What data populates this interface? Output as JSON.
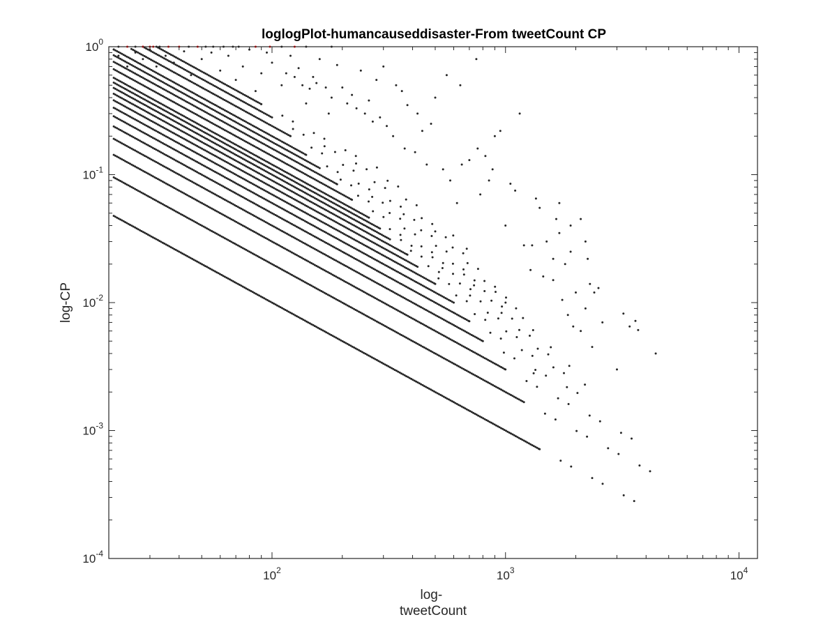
{
  "chart_data": {
    "type": "scatter",
    "title": "loglogPlot-humancauseddisaster-From tweetCount CP",
    "xlabel_lines": [
      "log-",
      "tweetCount"
    ],
    "ylabel": "log-CP",
    "xscale": "log",
    "yscale": "log",
    "xlim": [
      20,
      12000
    ],
    "ylim": [
      0.0001,
      1
    ],
    "grid": false,
    "legend": "none",
    "x_ticks": [
      {
        "value": 100,
        "base": "10",
        "exp": "2"
      },
      {
        "value": 1000,
        "base": "10",
        "exp": "3"
      },
      {
        "value": 10000,
        "base": "10",
        "exp": "4"
      }
    ],
    "y_ticks": [
      {
        "value": 1,
        "base": "10",
        "exp": "0"
      },
      {
        "value": 0.1,
        "base": "10",
        "exp": "-1"
      },
      {
        "value": 0.01,
        "base": "10",
        "exp": "-2"
      },
      {
        "value": 0.001,
        "base": "10",
        "exp": "-3"
      },
      {
        "value": 0.0001,
        "base": "10",
        "exp": "-4"
      }
    ],
    "point_color": "#262626",
    "highlight_color": "#ff0000",
    "series": [
      {
        "k": 1,
        "x_min": 21,
        "x_max": 1400,
        "dense": true
      },
      {
        "k": 1,
        "x_min": 1400,
        "x_max": 4200,
        "dense": false
      },
      {
        "k": 2,
        "x_min": 21,
        "x_max": 1200,
        "dense": true
      },
      {
        "k": 2,
        "x_min": 1200,
        "x_max": 4300,
        "dense": false
      },
      {
        "k": 3,
        "x_min": 21,
        "x_max": 1000,
        "dense": true
      },
      {
        "k": 3,
        "x_min": 1000,
        "x_max": 3500,
        "dense": false
      },
      {
        "k": 4,
        "x_min": 21,
        "x_max": 800,
        "dense": true
      },
      {
        "k": 4,
        "x_min": 800,
        "x_max": 2400,
        "dense": false
      },
      {
        "k": 5,
        "x_min": 21,
        "x_max": 700,
        "dense": true
      },
      {
        "k": 5,
        "x_min": 700,
        "x_max": 2400,
        "dense": false
      },
      {
        "k": 6,
        "x_min": 21,
        "x_max": 600,
        "dense": true
      },
      {
        "k": 6,
        "x_min": 600,
        "x_max": 1900,
        "dense": false
      },
      {
        "k": 7,
        "x_min": 21,
        "x_max": 500,
        "dense": true
      },
      {
        "k": 7,
        "x_min": 500,
        "x_max": 1600,
        "dense": false
      },
      {
        "k": 8,
        "x_min": 21,
        "x_max": 420,
        "dense": true
      },
      {
        "k": 8,
        "x_min": 420,
        "x_max": 1400,
        "dense": false
      },
      {
        "k": 9,
        "x_min": 21,
        "x_max": 380,
        "dense": true
      },
      {
        "k": 9,
        "x_min": 380,
        "x_max": 1300,
        "dense": false
      },
      {
        "k": 10,
        "x_min": 21,
        "x_max": 320,
        "dense": true
      },
      {
        "k": 10,
        "x_min": 320,
        "x_max": 1200,
        "dense": false
      },
      {
        "k": 11,
        "x_min": 21,
        "x_max": 290,
        "dense": true
      },
      {
        "k": 11,
        "x_min": 290,
        "x_max": 1100,
        "dense": false
      },
      {
        "k": 12,
        "x_min": 21,
        "x_max": 260,
        "dense": true
      },
      {
        "k": 12,
        "x_min": 260,
        "x_max": 1000,
        "dense": false
      },
      {
        "k": 14,
        "x_min": 21,
        "x_max": 220,
        "dense": true
      },
      {
        "k": 14,
        "x_min": 220,
        "x_max": 900,
        "dense": false
      },
      {
        "k": 16,
        "x_min": 21,
        "x_max": 190,
        "dense": true
      },
      {
        "k": 16,
        "x_min": 190,
        "x_max": 800,
        "dense": false
      },
      {
        "k": 18,
        "x_min": 21,
        "x_max": 160,
        "dense": true
      },
      {
        "k": 18,
        "x_min": 160,
        "x_max": 700,
        "dense": false
      },
      {
        "k": 20,
        "x_min": 21,
        "x_max": 140,
        "dense": true
      },
      {
        "k": 20,
        "x_min": 140,
        "x_max": 600,
        "dense": false
      },
      {
        "k": 24,
        "x_min": 25,
        "x_max": 120,
        "dense": true
      },
      {
        "k": 24,
        "x_min": 120,
        "x_max": 500,
        "dense": false
      },
      {
        "k": 28,
        "x_min": 28,
        "x_max": 100,
        "dense": true
      },
      {
        "k": 28,
        "x_min": 100,
        "x_max": 400,
        "dense": false
      },
      {
        "k": 32,
        "x_min": 32,
        "x_max": 90,
        "dense": true
      },
      {
        "k": 32,
        "x_min": 90,
        "x_max": 300,
        "dense": false
      }
    ],
    "scatter_points": [
      [
        1300,
        0.028
      ],
      [
        1320,
        0.0028
      ],
      [
        1500,
        0.03
      ],
      [
        1600,
        0.022
      ],
      [
        1700,
        0.035
      ],
      [
        1800,
        0.02
      ],
      [
        1900,
        0.025
      ],
      [
        2000,
        0.012
      ],
      [
        2100,
        0.006
      ],
      [
        2200,
        0.009
      ],
      [
        2300,
        0.014
      ],
      [
        2350,
        0.0045
      ],
      [
        2400,
        0.012
      ],
      [
        2250,
        0.022
      ],
      [
        2600,
        0.007
      ],
      [
        3000,
        0.003
      ],
      [
        3200,
        0.0082
      ],
      [
        3400,
        0.0065
      ],
      [
        3600,
        0.0072
      ],
      [
        3700,
        0.0061
      ],
      [
        4400,
        0.004
      ],
      [
        1600,
        0.015
      ],
      [
        1750,
        0.0105
      ],
      [
        1850,
        0.008
      ],
      [
        1950,
        0.0065
      ],
      [
        1450,
        0.016
      ],
      [
        1280,
        0.018
      ],
      [
        1200,
        0.028
      ],
      [
        1150,
        0.3
      ],
      [
        1100,
        0.075
      ],
      [
        1050,
        0.085
      ],
      [
        950,
        0.22
      ],
      [
        900,
        0.2
      ],
      [
        880,
        0.11
      ],
      [
        820,
        0.14
      ],
      [
        760,
        0.16
      ],
      [
        700,
        0.13
      ],
      [
        650,
        0.12
      ],
      [
        640,
        0.5
      ],
      [
        560,
        0.6
      ],
      [
        500,
        0.4
      ],
      [
        480,
        0.25
      ],
      [
        440,
        0.22
      ],
      [
        420,
        0.3
      ],
      [
        380,
        0.35
      ],
      [
        360,
        0.45
      ],
      [
        340,
        0.5
      ],
      [
        300,
        0.7
      ],
      [
        280,
        0.55
      ],
      [
        260,
        0.38
      ],
      [
        240,
        0.65
      ],
      [
        220,
        0.42
      ],
      [
        200,
        0.48
      ],
      [
        190,
        0.72
      ],
      [
        175,
        0.3
      ],
      [
        160,
        0.8
      ],
      [
        150,
        0.58
      ],
      [
        140,
        0.36
      ],
      [
        130,
        0.68
      ],
      [
        120,
        0.85
      ],
      [
        110,
        0.5
      ],
      [
        100,
        0.75
      ],
      [
        95,
        0.9
      ],
      [
        90,
        0.62
      ],
      [
        85,
        0.45
      ],
      [
        80,
        0.95
      ],
      [
        75,
        0.7
      ],
      [
        70,
        0.55
      ],
      [
        65,
        0.85
      ],
      [
        60,
        0.65
      ],
      [
        55,
        0.9
      ],
      [
        50,
        0.8
      ],
      [
        45,
        0.6
      ],
      [
        42,
        0.92
      ],
      [
        38,
        0.75
      ],
      [
        35,
        0.85
      ],
      [
        32,
        0.7
      ],
      [
        30,
        0.95
      ],
      [
        28,
        0.8
      ],
      [
        26,
        0.9
      ],
      [
        24,
        0.7
      ],
      [
        22,
        0.85
      ],
      [
        21,
        0.95
      ],
      [
        750,
        0.8
      ],
      [
        1000,
        0.04
      ],
      [
        1700,
        0.06
      ],
      [
        1900,
        0.04
      ],
      [
        2200,
        0.03
      ],
      [
        2500,
        0.013
      ],
      [
        2100,
        0.045
      ],
      [
        1650,
        0.045
      ],
      [
        1400,
        0.055
      ],
      [
        1350,
        0.065
      ],
      [
        850,
        0.09
      ],
      [
        780,
        0.07
      ],
      [
        620,
        0.06
      ],
      [
        580,
        0.09
      ],
      [
        540,
        0.11
      ],
      [
        460,
        0.12
      ],
      [
        410,
        0.15
      ],
      [
        370,
        0.16
      ],
      [
        330,
        0.2
      ],
      [
        310,
        0.24
      ],
      [
        290,
        0.28
      ],
      [
        270,
        0.26
      ],
      [
        250,
        0.3
      ],
      [
        230,
        0.33
      ],
      [
        210,
        0.36
      ],
      [
        180,
        0.4
      ],
      [
        170,
        0.48
      ],
      [
        155,
        0.52
      ],
      [
        145,
        0.47
      ],
      [
        135,
        0.5
      ],
      [
        125,
        0.58
      ],
      [
        115,
        0.62
      ]
    ],
    "highlight_points": [
      [
        24,
        1
      ],
      [
        28,
        1
      ],
      [
        30,
        1
      ],
      [
        31,
        1
      ],
      [
        36,
        1
      ],
      [
        40,
        1
      ],
      [
        48,
        1
      ],
      [
        85,
        1
      ],
      [
        98,
        1
      ],
      [
        125,
        1
      ]
    ],
    "upper_points": [
      [
        22,
        1
      ],
      [
        26,
        1
      ],
      [
        33,
        1
      ],
      [
        44,
        1
      ],
      [
        52,
        1
      ],
      [
        56,
        1
      ],
      [
        62,
        1
      ],
      [
        68,
        1
      ],
      [
        72,
        1
      ],
      [
        110,
        1
      ],
      [
        140,
        1
      ],
      [
        180,
        1
      ]
    ]
  }
}
